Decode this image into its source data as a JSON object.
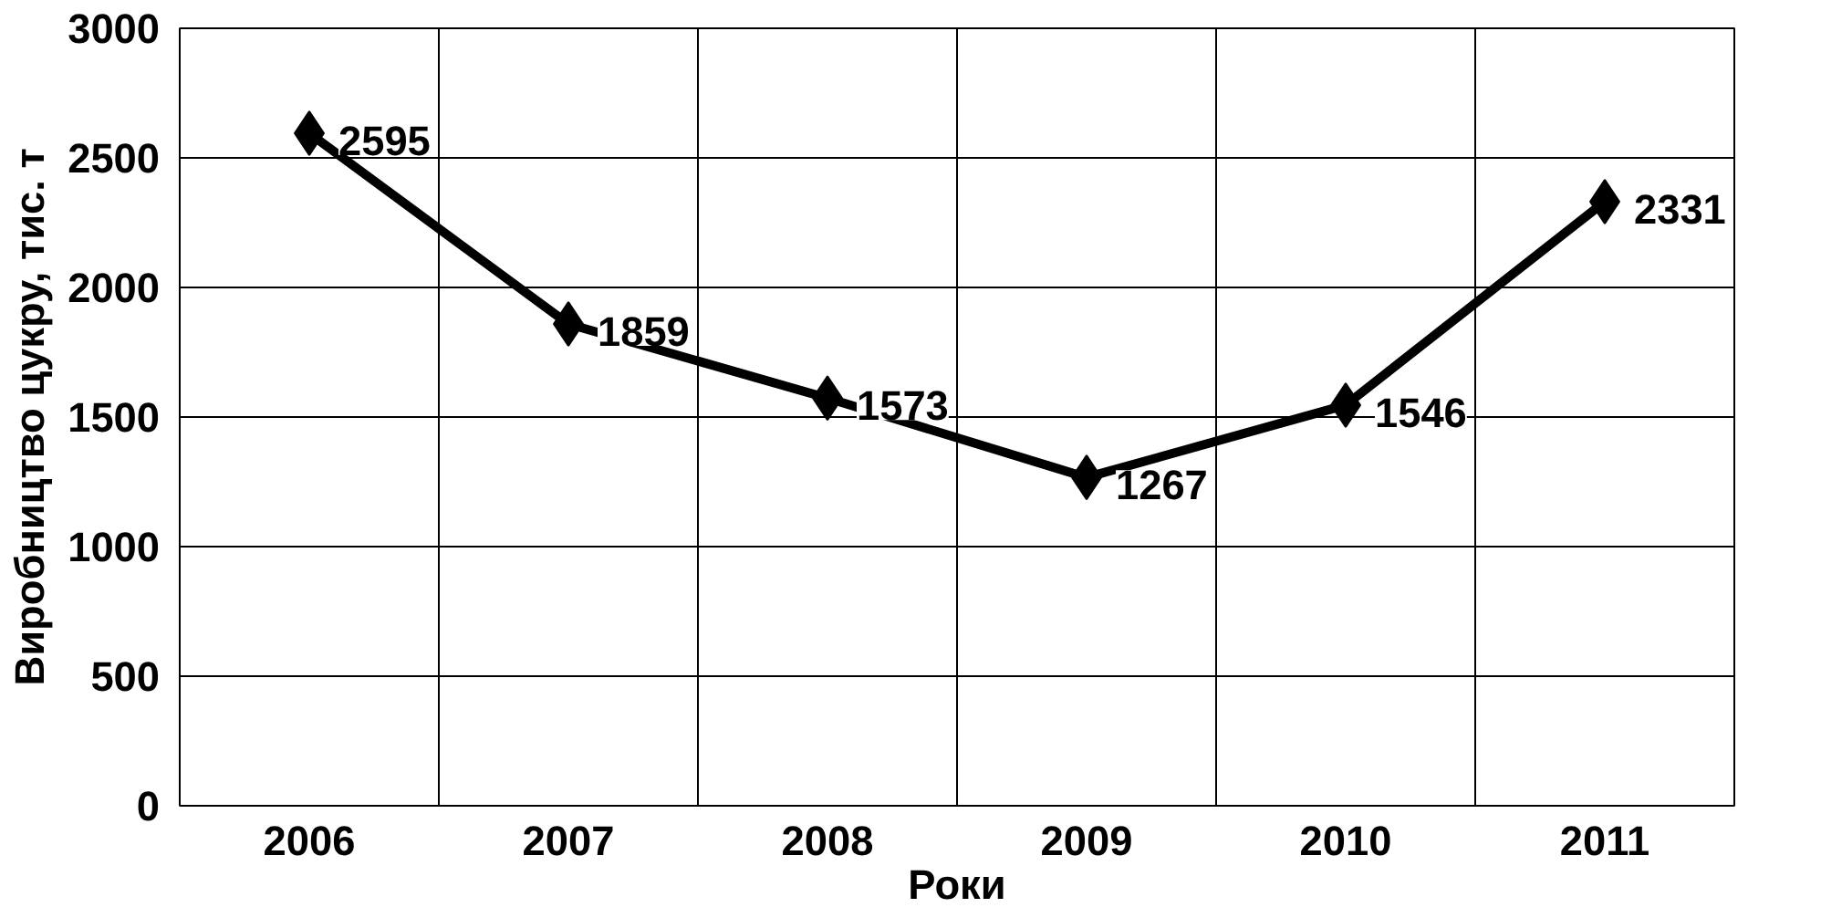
{
  "chart_data": {
    "type": "line",
    "xlabel": "Роки",
    "ylabel": "Виробництво цукру, тис. т",
    "categories": [
      "2006",
      "2007",
      "2008",
      "2009",
      "2010",
      "2011"
    ],
    "series": [
      {
        "color": "#000000",
        "values": [
          2595,
          1859,
          1573,
          1267,
          1546,
          2331
        ]
      }
    ],
    "ylim": [
      0,
      3000
    ],
    "yticks": [
      0,
      500,
      1000,
      1500,
      2000,
      2500,
      3000
    ],
    "grid": true,
    "marker": "diamond",
    "line_style": "solid",
    "data_labels": true
  }
}
